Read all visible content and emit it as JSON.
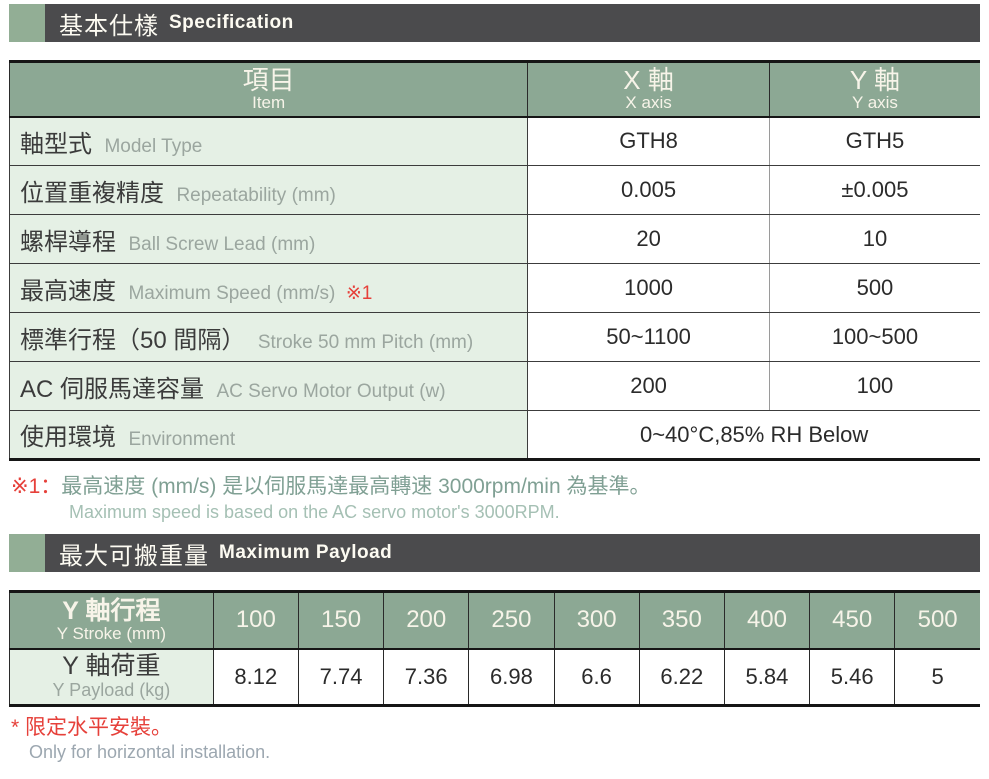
{
  "colors": {
    "accent_green": "#8ca894",
    "light_green": "#e5f0e5",
    "dark_bar": "#4b4b4d",
    "red": "#e6403a"
  },
  "section1": {
    "title_zh": "基本仕樣",
    "title_en": "Specification"
  },
  "spec": {
    "header": {
      "item_zh": "項目",
      "item_en": "Item",
      "x_zh": "X 軸",
      "x_en": "X axis",
      "y_zh": "Y 軸",
      "y_en": "Y axis"
    },
    "rows": [
      {
        "zh": "軸型式",
        "en": "Model Type",
        "x": "GTH8",
        "y": "GTH5"
      },
      {
        "zh": "位置重複精度",
        "en": "Repeatability (mm)",
        "x": "0.005",
        "y": "±0.005"
      },
      {
        "zh": "螺桿導程",
        "en": "Ball Screw Lead (mm)",
        "x": "20",
        "y": "10"
      },
      {
        "zh": "最高速度",
        "en": "Maximum Speed (mm/s)",
        "note": "※1",
        "x": "1000",
        "y": "500"
      },
      {
        "zh": "標準行程（50 間隔）",
        "en": "Stroke 50 mm Pitch (mm)",
        "x": "50~1100",
        "y": "100~500"
      },
      {
        "zh": "AC 伺服馬達容量",
        "en": "AC Servo Motor Output (w)",
        "x": "200",
        "y": "100"
      },
      {
        "zh": "使用環境",
        "en": "Environment",
        "span": "0~40°C,85% RH Below"
      }
    ]
  },
  "footnote1": {
    "marker": "※1：",
    "zh": "最高速度 (mm/s) 是以伺服馬達最高轉速 3000rpm/min 為基準。",
    "en": "Maximum speed is based on the AC servo motor's 3000RPM."
  },
  "section2": {
    "title_zh": "最大可搬重量",
    "title_en": "Maximum Payload"
  },
  "payload": {
    "row_header": {
      "zh": "Y 軸行程",
      "en": "Y Stroke (mm)"
    },
    "strokes": [
      "100",
      "150",
      "200",
      "250",
      "300",
      "350",
      "400",
      "450",
      "500"
    ],
    "row_label": {
      "zh": "Y 軸荷重",
      "en": "Y Payload (kg)"
    },
    "values": [
      "8.12",
      "7.74",
      "7.36",
      "6.98",
      "6.6",
      "6.22",
      "5.84",
      "5.46",
      "5"
    ]
  },
  "footnote2": {
    "marker": "*",
    "zh": "限定水平安裝。",
    "en": "Only for horizontal installation."
  }
}
